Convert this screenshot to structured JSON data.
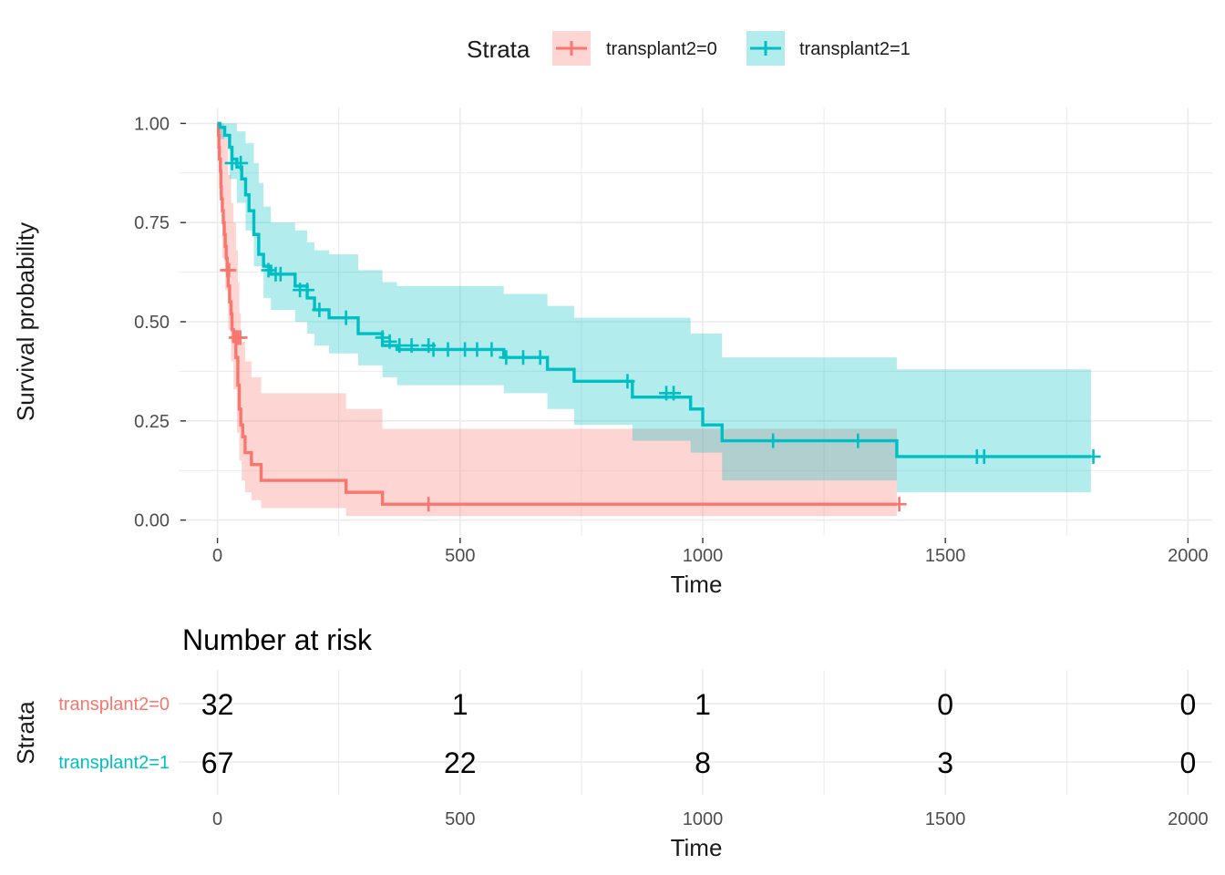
{
  "legend": {
    "title": "Strata"
  },
  "colors": {
    "transplant2=0": "#F8766D",
    "transplant2=1": "#00BFC4",
    "grid": "#EBEBEB"
  },
  "chart_data": [
    {
      "type": "line",
      "subtype": "kaplan-meier step plot with confidence bands and censor marks",
      "xlabel": "Time",
      "ylabel": "Survival probability",
      "xlim": [
        -80,
        2050
      ],
      "ylim": [
        -0.04,
        1.04
      ],
      "x_ticks": [
        0,
        500,
        1000,
        1500,
        2000
      ],
      "x_tick_labels": [
        "0",
        "500",
        "1000",
        "1500",
        "2000"
      ],
      "y_ticks": [
        0,
        0.25,
        0.5,
        0.75,
        1
      ],
      "y_tick_labels": [
        "0.00",
        "0.25",
        "0.50",
        "0.75",
        "1.00"
      ],
      "grid": true,
      "legend_position": "top",
      "series": [
        {
          "name": "transplant2=0",
          "color": "#F8766D",
          "steps": [
            [
              0,
              1.0
            ],
            [
              2,
              0.97
            ],
            [
              3,
              0.94
            ],
            [
              4,
              0.91
            ],
            [
              6,
              0.88
            ],
            [
              7,
              0.84
            ],
            [
              8,
              0.81
            ],
            [
              10,
              0.78
            ],
            [
              12,
              0.75
            ],
            [
              14,
              0.72
            ],
            [
              16,
              0.69
            ],
            [
              18,
              0.66
            ],
            [
              20,
              0.63
            ],
            [
              22,
              0.59
            ],
            [
              25,
              0.55
            ],
            [
              28,
              0.52
            ],
            [
              30,
              0.48
            ],
            [
              33,
              0.45
            ],
            [
              38,
              0.41
            ],
            [
              42,
              0.34
            ],
            [
              45,
              0.28
            ],
            [
              48,
              0.24
            ],
            [
              52,
              0.21
            ],
            [
              57,
              0.17
            ],
            [
              70,
              0.14
            ],
            [
              90,
              0.1
            ],
            [
              265,
              0.07
            ],
            [
              340,
              0.04
            ],
            [
              1400,
              0.04
            ]
          ],
          "ci_lower": [
            [
              0,
              0.95
            ],
            [
              4,
              0.82
            ],
            [
              10,
              0.66
            ],
            [
              16,
              0.58
            ],
            [
              22,
              0.48
            ],
            [
              28,
              0.4
            ],
            [
              33,
              0.33
            ],
            [
              40,
              0.22
            ],
            [
              45,
              0.15
            ],
            [
              50,
              0.1
            ],
            [
              57,
              0.07
            ],
            [
              70,
              0.05
            ],
            [
              90,
              0.03
            ],
            [
              265,
              0.01
            ],
            [
              340,
              0.01
            ],
            [
              1400,
              0.01
            ]
          ],
          "ci_upper": [
            [
              0,
              1.0
            ],
            [
              14,
              0.96
            ],
            [
              22,
              0.87
            ],
            [
              28,
              0.8
            ],
            [
              33,
              0.75
            ],
            [
              38,
              0.68
            ],
            [
              42,
              0.6
            ],
            [
              45,
              0.52
            ],
            [
              48,
              0.45
            ],
            [
              57,
              0.4
            ],
            [
              70,
              0.36
            ],
            [
              90,
              0.32
            ],
            [
              265,
              0.28
            ],
            [
              340,
              0.23
            ],
            [
              1400,
              0.23
            ]
          ],
          "censor_times": [
            20,
            24,
            38,
            42,
            47,
            435,
            1405
          ],
          "censor_values": [
            0.63,
            0.63,
            0.46,
            0.46,
            0.46,
            0.04,
            0.04
          ]
        },
        {
          "name": "transplant2=1",
          "color": "#00BFC4",
          "steps": [
            [
              0,
              1.0
            ],
            [
              5,
              0.99
            ],
            [
              15,
              0.97
            ],
            [
              25,
              0.94
            ],
            [
              30,
              0.91
            ],
            [
              40,
              0.89
            ],
            [
              50,
              0.86
            ],
            [
              58,
              0.82
            ],
            [
              65,
              0.78
            ],
            [
              75,
              0.72
            ],
            [
              85,
              0.67
            ],
            [
              95,
              0.64
            ],
            [
              110,
              0.62
            ],
            [
              160,
              0.59
            ],
            [
              185,
              0.56
            ],
            [
              200,
              0.53
            ],
            [
              230,
              0.51
            ],
            [
              290,
              0.47
            ],
            [
              340,
              0.44
            ],
            [
              370,
              0.43
            ],
            [
              590,
              0.41
            ],
            [
              680,
              0.38
            ],
            [
              735,
              0.35
            ],
            [
              855,
              0.31
            ],
            [
              975,
              0.28
            ],
            [
              1000,
              0.24
            ],
            [
              1040,
              0.2
            ],
            [
              1400,
              0.16
            ],
            [
              1800,
              0.16
            ]
          ],
          "ci_lower": [
            [
              0,
              0.96
            ],
            [
              25,
              0.86
            ],
            [
              40,
              0.8
            ],
            [
              58,
              0.73
            ],
            [
              75,
              0.64
            ],
            [
              95,
              0.56
            ],
            [
              110,
              0.53
            ],
            [
              160,
              0.5
            ],
            [
              185,
              0.47
            ],
            [
              200,
              0.44
            ],
            [
              230,
              0.42
            ],
            [
              290,
              0.39
            ],
            [
              340,
              0.36
            ],
            [
              370,
              0.34
            ],
            [
              590,
              0.32
            ],
            [
              680,
              0.28
            ],
            [
              735,
              0.24
            ],
            [
              855,
              0.2
            ],
            [
              975,
              0.17
            ],
            [
              1040,
              0.1
            ],
            [
              1400,
              0.07
            ],
            [
              1800,
              0.07
            ]
          ],
          "ci_upper": [
            [
              0,
              1.0
            ],
            [
              40,
              0.98
            ],
            [
              58,
              0.95
            ],
            [
              75,
              0.9
            ],
            [
              85,
              0.85
            ],
            [
              95,
              0.79
            ],
            [
              110,
              0.75
            ],
            [
              160,
              0.73
            ],
            [
              185,
              0.7
            ],
            [
              200,
              0.68
            ],
            [
              230,
              0.67
            ],
            [
              290,
              0.63
            ],
            [
              340,
              0.6
            ],
            [
              370,
              0.59
            ],
            [
              590,
              0.57
            ],
            [
              680,
              0.54
            ],
            [
              735,
              0.51
            ],
            [
              975,
              0.47
            ],
            [
              1040,
              0.41
            ],
            [
              1400,
              0.38
            ],
            [
              1800,
              0.38
            ]
          ],
          "censor_times": [
            30,
            48,
            105,
            120,
            130,
            170,
            185,
            210,
            265,
            340,
            355,
            375,
            400,
            435,
            445,
            475,
            510,
            535,
            565,
            595,
            630,
            665,
            845,
            925,
            940,
            1145,
            1320,
            1565,
            1580,
            1805
          ],
          "censor_values": [
            0.9,
            0.9,
            0.63,
            0.62,
            0.62,
            0.58,
            0.58,
            0.53,
            0.51,
            0.46,
            0.45,
            0.44,
            0.44,
            0.44,
            0.43,
            0.43,
            0.43,
            0.43,
            0.43,
            0.41,
            0.41,
            0.41,
            0.35,
            0.32,
            0.32,
            0.2,
            0.2,
            0.16,
            0.16,
            0.16
          ]
        }
      ]
    },
    {
      "type": "table",
      "title": "Number at risk",
      "xlabel": "Time",
      "ylabel": "Strata",
      "x_ticks": [
        0,
        500,
        1000,
        1500,
        2000
      ],
      "x_tick_labels": [
        "0",
        "500",
        "1000",
        "1500",
        "2000"
      ],
      "rows": [
        {
          "name": "transplant2=0",
          "color": "#F8766D",
          "values": [
            "32",
            "1",
            "1",
            "0",
            "0"
          ]
        },
        {
          "name": "transplant2=1",
          "color": "#00BFC4",
          "values": [
            "67",
            "22",
            "8",
            "3",
            "0"
          ]
        }
      ]
    }
  ]
}
